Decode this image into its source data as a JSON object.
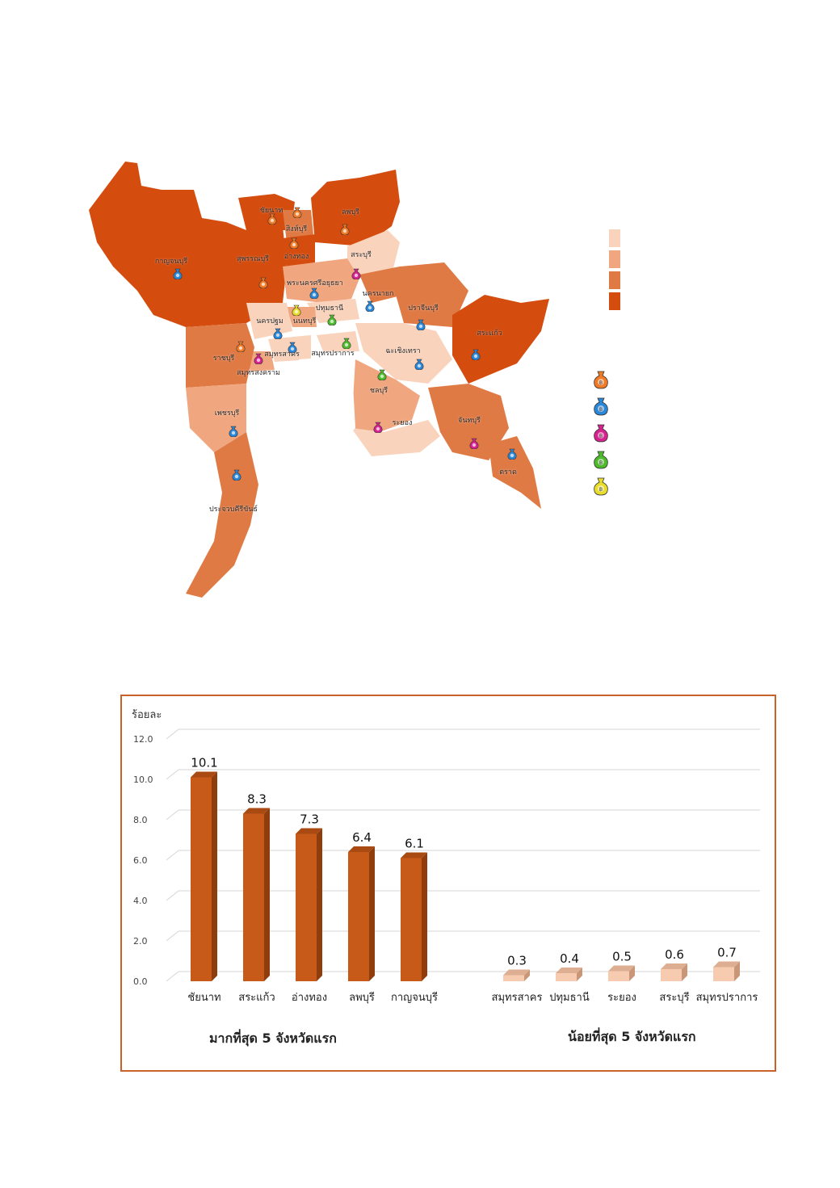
{
  "colors": {
    "legend_swatches": [
      "#f9d3bc",
      "#f0a77f",
      "#e07a45",
      "#d44c0e"
    ],
    "top_bar": "#c85a19",
    "top_bar_side": "#8f3d0c",
    "top_bar_top": "#a94a12",
    "bottom_bar": "#f6cbb0",
    "bottom_bar_side": "#c99677",
    "bottom_bar_top": "#ddae92",
    "frame": "#c8622a"
  },
  "map": {
    "province_labels": [
      "ชัยนาท",
      "ลพบุรี",
      "สิงห์บุรี",
      "กาญจนบุรี",
      "สุพรรณบุรี",
      "อ่างทอง",
      "สระบุรี",
      "พระนครศรีอยุธยา",
      "นครนายก",
      "ปทุมธานี",
      "ปราจีนบุรี",
      "นครปฐม",
      "นนทบุรี",
      "สระแก้ว",
      "ราชบุรี",
      "สมุทรสาคร",
      "สมุทรปราการ",
      "ฉะเชิงเทรา",
      "สมุทรสงคราม",
      "ชลบุรี",
      "เพชรบุรี",
      "ระยอง",
      "จันทบุรี",
      "ตราด",
      "ประจวบคีรีขันธ์"
    ],
    "bag_legend_icons": [
      "money-bag-orange-icon",
      "money-bag-blue-icon",
      "money-bag-pink-icon",
      "money-bag-green-icon",
      "money-bag-yellow-icon"
    ],
    "bag_legend_colors": [
      "#f07a26",
      "#2a86d6",
      "#d6218f",
      "#4dbb2c",
      "#e8dd2b"
    ]
  },
  "chart_data": {
    "type": "bar",
    "ylabel": "ร้อยละ",
    "ylim": [
      0,
      12
    ],
    "yticks": [
      "0.0",
      "2.0",
      "4.0",
      "6.0",
      "8.0",
      "10.0",
      "12.0"
    ],
    "grid": true,
    "groups": [
      {
        "title": "มากที่สุด 5 จังหวัดแรก",
        "categories": [
          "ชัยนาท",
          "สระแก้ว",
          "อ่างทอง",
          "ลพบุรี",
          "กาญจนบุรี"
        ],
        "values": [
          10.1,
          8.3,
          7.3,
          6.4,
          6.1
        ],
        "value_labels": [
          "10.1",
          "8.3",
          "7.3",
          "6.4",
          "6.1"
        ]
      },
      {
        "title": "น้อยที่สุด 5 จังหวัดแรก",
        "categories": [
          "สมุทรสาคร",
          "ปทุมธานี",
          "ระยอง",
          "สระบุรี",
          "สมุทรปราการ"
        ],
        "values": [
          0.3,
          0.4,
          0.5,
          0.6,
          0.7
        ],
        "value_labels": [
          "0.3",
          "0.4",
          "0.5",
          "0.6",
          "0.7"
        ]
      }
    ]
  }
}
